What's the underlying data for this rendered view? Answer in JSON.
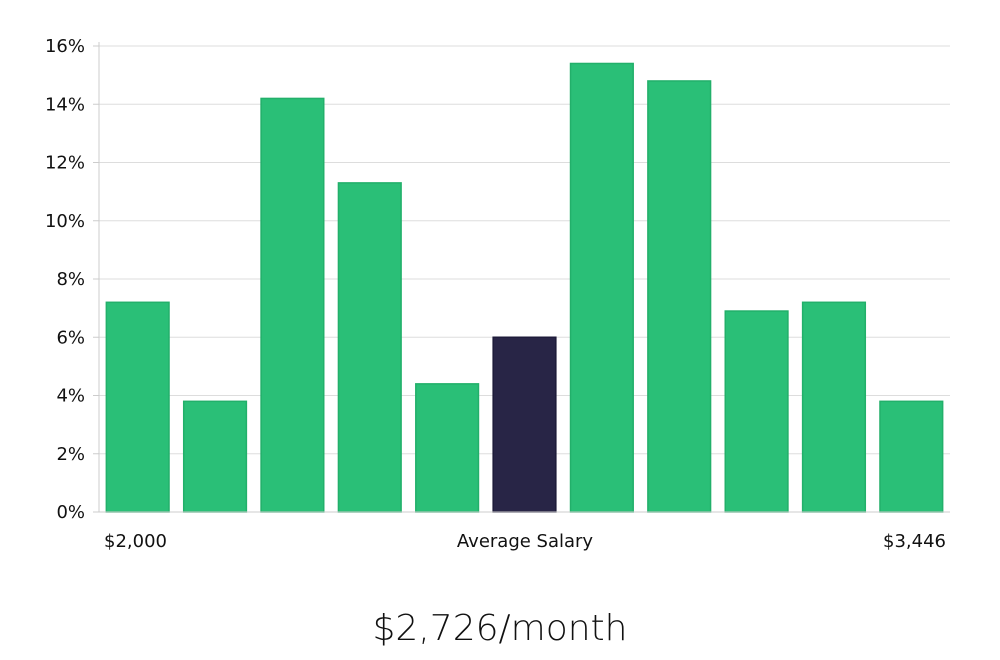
{
  "chart_data": {
    "type": "bar",
    "title": "",
    "xlabel": "Average Salary",
    "ylabel": "",
    "ylim": [
      0,
      16
    ],
    "yticks": [
      "0%",
      "2%",
      "4%",
      "6%",
      "8%",
      "10%",
      "12%",
      "14%",
      "16%"
    ],
    "x_start_label": "$2,000",
    "x_end_label": "$3,446",
    "values": [
      7.2,
      3.8,
      14.2,
      11.3,
      4.4,
      6.0,
      15.4,
      14.8,
      6.9,
      7.2,
      3.8
    ],
    "highlight_index": 5,
    "grid": true
  },
  "colors": {
    "bar": "#2abf77",
    "bar_edge": "#22b06a",
    "highlight": "#282546",
    "grid": "#dddddd",
    "axis": "#cccccc"
  },
  "summary": {
    "salary_text": "$2,726/month"
  }
}
